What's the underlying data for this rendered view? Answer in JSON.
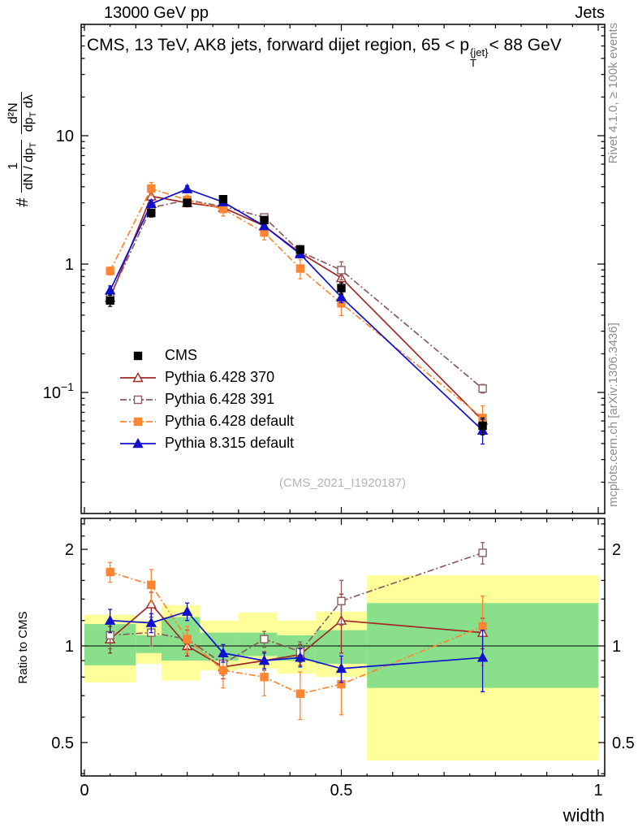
{
  "header": {
    "left": "13000 GeV pp",
    "right": "Jets"
  },
  "title": {
    "prefix": "CMS, 13 TeV, AK8 jets, forward dijet region, 65 < p",
    "sup": "{jet}",
    "sub": "T",
    "suffix": "< 88 GeV"
  },
  "ylabel": {
    "prefix": "#",
    "frac1": {
      "num": "1",
      "den_main": "dN / dp",
      "den_sub": "T"
    },
    "frac2": {
      "num": "d²N",
      "den_main": "dp",
      "den_sub": "T",
      "den_tail": " dλ"
    }
  },
  "side": {
    "rivet": "Rivet 4.1.0, ≥ 100k events",
    "mcplots": "mcplots.cern.ch [arXiv:1306.3436]"
  },
  "watermark": "(CMS_2021_I1920187)",
  "ratio_panel": {
    "ylabel": "Ratio to CMS"
  },
  "axes": {
    "xlabel": "width",
    "x_ticks": [
      {
        "v": 0,
        "label": "0"
      },
      {
        "v": 0.5,
        "label": "0.5"
      },
      {
        "v": 1,
        "label": "1"
      }
    ],
    "main_y_ticks": [
      {
        "v": 10,
        "base": "10",
        "exp": ""
      },
      {
        "v": 1,
        "base": "1",
        "exp": ""
      },
      {
        "v": 0.1,
        "base": "10",
        "exp": "−1"
      }
    ],
    "ratio_y_ticks": [
      {
        "v": 2,
        "label": "2"
      },
      {
        "v": 1,
        "label": "1"
      },
      {
        "v": 0.5,
        "label": "0.5"
      }
    ]
  },
  "chart_data": {
    "type": "line",
    "title": "CMS, 13 TeV, AK8 jets, forward dijet region, 65 < pT^{jet} < 88 GeV",
    "xlabel": "width",
    "ylabel": "# 1/(dN/dpT) d²N/(dpT dλ)",
    "ratio_ylabel": "Ratio to CMS",
    "x": [
      0.05,
      0.13,
      0.2,
      0.27,
      0.35,
      0.42,
      0.5,
      0.775
    ],
    "xlim": [
      -0.006,
      1.013
    ],
    "main_yscale": "log",
    "main_ylim": [
      0.0114,
      73
    ],
    "ratio_yscale": "log",
    "ratio_ylim": [
      0.4,
      2.5
    ],
    "grid": false,
    "legend_position": "lower-left-of-main-panel",
    "series": [
      {
        "name": "CMS",
        "color": "#000000",
        "marker": "square",
        "fill": "filled",
        "linestyle": "none",
        "values": [
          0.52,
          2.5,
          3.0,
          3.2,
          2.2,
          1.3,
          0.65,
          0.055
        ],
        "yerr_rel": [
          0.1,
          0.07,
          0.06,
          0.06,
          0.06,
          0.07,
          0.1,
          0.15
        ]
      },
      {
        "name": "Pythia 6.428 370",
        "color": "#a02828",
        "marker": "triangle",
        "fill": "open",
        "linestyle": "solid",
        "ratio_to_cms": [
          1.05,
          1.35,
          1.0,
          0.86,
          0.9,
          0.94,
          1.2,
          1.1
        ],
        "ratio_err": [
          0.1,
          0.12,
          0.07,
          0.07,
          0.06,
          0.07,
          0.25,
          0.12
        ]
      },
      {
        "name": "Pythia 6.428 391",
        "color": "#8b5c5c",
        "marker": "square",
        "fill": "open",
        "linestyle": "dashdot",
        "ratio_to_cms": [
          1.08,
          1.1,
          1.05,
          0.88,
          1.05,
          0.96,
          1.38,
          1.95
        ],
        "ratio_err": [
          0.1,
          0.1,
          0.07,
          0.07,
          0.06,
          0.07,
          0.22,
          0.15
        ]
      },
      {
        "name": "Pythia 6.428 default",
        "color": "#ff8532",
        "marker": "square",
        "fill": "filled",
        "linestyle": "dashdot",
        "ratio_to_cms": [
          1.7,
          1.55,
          1.05,
          0.84,
          0.8,
          0.71,
          0.76,
          1.15
        ],
        "ratio_err": [
          0.12,
          0.18,
          0.1,
          0.1,
          0.1,
          0.12,
          0.15,
          0.28
        ]
      },
      {
        "name": "Pythia 8.315 default",
        "color": "#1111cc",
        "marker": "triangle",
        "fill": "filled",
        "linestyle": "solid",
        "ratio_to_cms": [
          1.2,
          1.18,
          1.28,
          0.95,
          0.9,
          0.92,
          0.85,
          0.92
        ],
        "ratio_err": [
          0.1,
          0.08,
          0.08,
          0.06,
          0.05,
          0.06,
          0.08,
          0.2
        ]
      }
    ],
    "uncertainty_bands": {
      "bin_edges": [
        0,
        0.1,
        0.15,
        0.225,
        0.3,
        0.375,
        0.45,
        0.55,
        1.0
      ],
      "yellow": [
        [
          0.77,
          1.25
        ],
        [
          0.88,
          1.2
        ],
        [
          0.78,
          1.34
        ],
        [
          0.84,
          1.2
        ],
        [
          0.85,
          1.27
        ],
        [
          0.82,
          1.2
        ],
        [
          0.8,
          1.28
        ],
        [
          0.44,
          1.66
        ]
      ],
      "green": [
        [
          0.87,
          1.17
        ],
        [
          0.95,
          1.08
        ],
        [
          0.9,
          1.23
        ],
        [
          0.9,
          1.1
        ],
        [
          0.93,
          1.1
        ],
        [
          0.9,
          1.08
        ],
        [
          0.88,
          1.12
        ],
        [
          0.74,
          1.36
        ]
      ],
      "yellow_color": "#ffff99",
      "green_color": "#8ae08a"
    }
  }
}
